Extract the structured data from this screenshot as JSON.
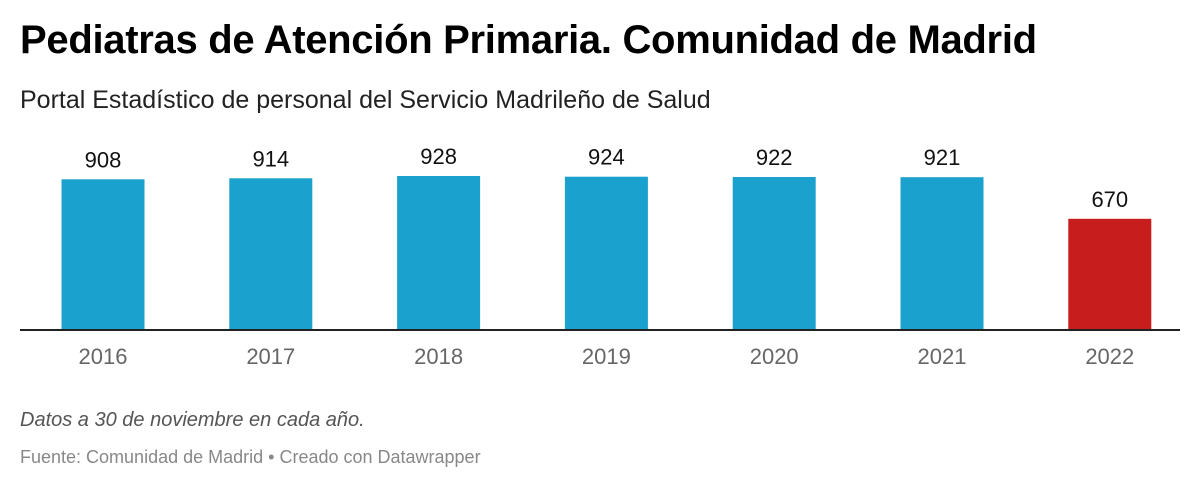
{
  "header": {
    "title": "Pediatras de Atención Primaria. Comunidad de Madrid",
    "subtitle": "Portal Estadístico de personal del Servicio Madrileño de Salud"
  },
  "chart_data": {
    "type": "bar",
    "title": "Pediatras de Atención Primaria. Comunidad de Madrid",
    "subtitle": "Portal Estadístico de personal del Servicio Madrileño de Salud",
    "categories": [
      "2016",
      "2017",
      "2018",
      "2019",
      "2020",
      "2021",
      "2022"
    ],
    "values": [
      908,
      914,
      928,
      924,
      922,
      921,
      670
    ],
    "data_labels": [
      "908",
      "914",
      "928",
      "924",
      "922",
      "921",
      "670"
    ],
    "colors": [
      "#1aa1cd",
      "#1aa1cd",
      "#1aa1cd",
      "#1aa1cd",
      "#1aa1cd",
      "#1aa1cd",
      "#c71e1d"
    ],
    "xlabel": "",
    "ylabel": "",
    "ylim": [
      0,
      928
    ],
    "grid": false
  },
  "footer": {
    "note": "Datos a 30 de noviembre en cada año.",
    "source": "Fuente: Comunidad de Madrid",
    "separator": "•",
    "credit": "Creado con Datawrapper"
  }
}
